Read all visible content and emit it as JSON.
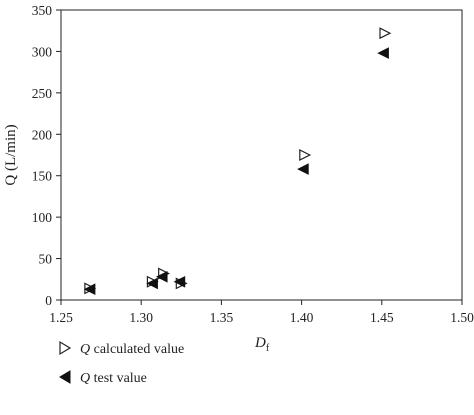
{
  "chart_data": {
    "type": "scatter",
    "xlabel": "D",
    "xlabel_subscript": "f",
    "ylabel": "Q (L/min)",
    "xlim": [
      1.25,
      1.5
    ],
    "ylim": [
      0,
      350
    ],
    "xticks": [
      "1.25",
      "1.30",
      "1.35",
      "1.40",
      "1.45",
      "1.50"
    ],
    "yticks": [
      "0",
      "50",
      "100",
      "150",
      "200",
      "250",
      "300",
      "350"
    ],
    "grid": false,
    "legend_position": "bottom-left",
    "series": [
      {
        "name": "Q calculated value",
        "marker": "open-triangle-right",
        "x": [
          1.268,
          1.307,
          1.314,
          1.325,
          1.402,
          1.452
        ],
        "y": [
          14,
          22,
          32,
          20,
          175,
          322
        ]
      },
      {
        "name": "Q test value",
        "marker": "filled-triangle-left",
        "x": [
          1.268,
          1.307,
          1.313,
          1.324,
          1.401,
          1.451
        ],
        "y": [
          13,
          20,
          28,
          22,
          158,
          298
        ]
      }
    ]
  },
  "legend": {
    "items": [
      {
        "prefix": "Q",
        "suffix": " calculated value"
      },
      {
        "prefix": "Q",
        "suffix": " test value"
      }
    ]
  }
}
